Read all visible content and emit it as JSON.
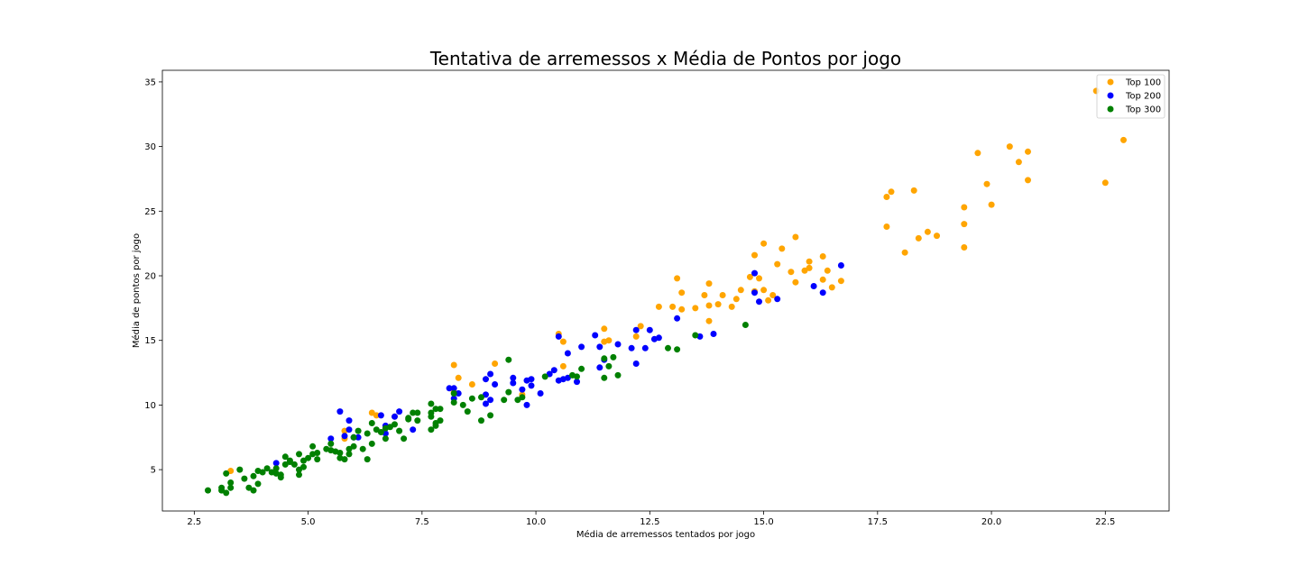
{
  "chart_data": {
    "type": "scatter",
    "title": "Tentativa de arremessos x Média de Pontos por jogo",
    "xlabel": "Média de arremessos tentados por jogo",
    "ylabel": "Média de pontos por jogo",
    "xlim": [
      1.8,
      23.9
    ],
    "ylim": [
      1.8,
      35.9
    ],
    "xticks": [
      2.5,
      5.0,
      7.5,
      10.0,
      12.5,
      15.0,
      17.5,
      20.0,
      22.5
    ],
    "xtick_labels": [
      "2.5",
      "5.0",
      "7.5",
      "10.0",
      "12.5",
      "15.0",
      "17.5",
      "20.0",
      "22.5"
    ],
    "yticks": [
      5,
      10,
      15,
      20,
      25,
      30,
      35
    ],
    "ytick_labels": [
      "5",
      "10",
      "15",
      "20",
      "25",
      "30",
      "35"
    ],
    "grid": false,
    "legend_position": "top-right",
    "series": [
      {
        "name": "Top 100",
        "color": "#FFA500",
        "points": [
          [
            22.9,
            30.5
          ],
          [
            22.5,
            27.2
          ],
          [
            22.3,
            34.3
          ],
          [
            20.8,
            29.6
          ],
          [
            20.8,
            27.4
          ],
          [
            20.6,
            28.8
          ],
          [
            20.4,
            30.0
          ],
          [
            20.0,
            25.5
          ],
          [
            19.9,
            27.1
          ],
          [
            19.7,
            29.5
          ],
          [
            19.4,
            25.3
          ],
          [
            19.4,
            24.0
          ],
          [
            19.4,
            22.2
          ],
          [
            18.8,
            23.1
          ],
          [
            18.6,
            23.4
          ],
          [
            18.4,
            22.9
          ],
          [
            18.3,
            26.6
          ],
          [
            18.1,
            21.8
          ],
          [
            17.8,
            26.5
          ],
          [
            17.7,
            26.1
          ],
          [
            17.7,
            23.8
          ],
          [
            16.7,
            19.6
          ],
          [
            16.5,
            19.1
          ],
          [
            16.4,
            20.4
          ],
          [
            16.3,
            21.5
          ],
          [
            16.3,
            19.7
          ],
          [
            16.0,
            21.1
          ],
          [
            16.0,
            20.6
          ],
          [
            15.9,
            20.4
          ],
          [
            15.7,
            23.0
          ],
          [
            15.7,
            19.5
          ],
          [
            15.6,
            20.3
          ],
          [
            15.4,
            22.1
          ],
          [
            15.3,
            20.9
          ],
          [
            15.2,
            18.5
          ],
          [
            15.1,
            18.1
          ],
          [
            15.0,
            22.5
          ],
          [
            15.0,
            18.9
          ],
          [
            14.9,
            19.8
          ],
          [
            14.8,
            21.6
          ],
          [
            14.8,
            18.8
          ],
          [
            14.7,
            19.9
          ],
          [
            14.5,
            18.9
          ],
          [
            14.4,
            18.2
          ],
          [
            14.3,
            17.6
          ],
          [
            14.1,
            18.5
          ],
          [
            14.0,
            17.8
          ],
          [
            13.8,
            19.4
          ],
          [
            13.8,
            17.7
          ],
          [
            13.8,
            16.5
          ],
          [
            13.7,
            18.5
          ],
          [
            13.5,
            17.5
          ],
          [
            13.2,
            18.7
          ],
          [
            13.2,
            17.4
          ],
          [
            13.1,
            19.8
          ],
          [
            13.0,
            17.6
          ],
          [
            12.7,
            17.6
          ],
          [
            12.3,
            16.1
          ],
          [
            12.2,
            15.3
          ],
          [
            11.6,
            15.0
          ],
          [
            11.5,
            15.9
          ],
          [
            11.5,
            14.9
          ],
          [
            10.6,
            14.9
          ],
          [
            10.6,
            13.0
          ],
          [
            10.5,
            15.5
          ],
          [
            9.7,
            10.8
          ],
          [
            9.1,
            13.2
          ],
          [
            8.6,
            11.6
          ],
          [
            8.3,
            12.1
          ],
          [
            8.2,
            13.1
          ],
          [
            8.2,
            11.0
          ],
          [
            6.9,
            9.1
          ],
          [
            6.5,
            9.2
          ],
          [
            6.4,
            9.4
          ],
          [
            5.8,
            7.4
          ],
          [
            5.8,
            8.0
          ],
          [
            3.3,
            4.9
          ]
        ]
      },
      {
        "name": "Top 200",
        "color": "#0000FF",
        "points": [
          [
            16.7,
            20.8
          ],
          [
            16.3,
            18.7
          ],
          [
            16.1,
            19.2
          ],
          [
            15.3,
            18.2
          ],
          [
            14.9,
            18.0
          ],
          [
            14.8,
            20.2
          ],
          [
            14.8,
            18.7
          ],
          [
            13.9,
            15.5
          ],
          [
            13.6,
            15.3
          ],
          [
            13.1,
            16.7
          ],
          [
            12.7,
            15.2
          ],
          [
            12.6,
            15.1
          ],
          [
            12.5,
            15.8
          ],
          [
            12.4,
            14.4
          ],
          [
            12.2,
            15.8
          ],
          [
            12.2,
            13.2
          ],
          [
            12.1,
            14.4
          ],
          [
            11.8,
            14.7
          ],
          [
            11.5,
            13.5
          ],
          [
            11.4,
            14.5
          ],
          [
            11.4,
            12.9
          ],
          [
            11.3,
            15.4
          ],
          [
            11.0,
            14.5
          ],
          [
            10.9,
            11.8
          ],
          [
            10.7,
            14.0
          ],
          [
            10.7,
            12.1
          ],
          [
            10.6,
            12.0
          ],
          [
            10.5,
            15.3
          ],
          [
            10.5,
            11.9
          ],
          [
            10.4,
            12.7
          ],
          [
            10.3,
            12.4
          ],
          [
            10.1,
            10.9
          ],
          [
            9.9,
            12.0
          ],
          [
            9.9,
            11.5
          ],
          [
            9.8,
            11.9
          ],
          [
            9.8,
            10.0
          ],
          [
            9.7,
            11.2
          ],
          [
            9.5,
            12.1
          ],
          [
            9.5,
            11.7
          ],
          [
            9.1,
            11.6
          ],
          [
            9.0,
            10.4
          ],
          [
            9.0,
            12.4
          ],
          [
            8.9,
            12.0
          ],
          [
            8.9,
            10.8
          ],
          [
            8.9,
            10.1
          ],
          [
            8.3,
            10.9
          ],
          [
            8.2,
            11.3
          ],
          [
            8.2,
            10.5
          ],
          [
            8.1,
            11.3
          ],
          [
            7.3,
            8.1
          ],
          [
            7.0,
            9.5
          ],
          [
            6.9,
            9.1
          ],
          [
            6.7,
            8.4
          ],
          [
            6.7,
            7.8
          ],
          [
            6.6,
            9.2
          ],
          [
            6.1,
            7.5
          ],
          [
            6.0,
            7.5
          ],
          [
            5.9,
            8.8
          ],
          [
            5.9,
            8.1
          ],
          [
            5.8,
            7.6
          ],
          [
            5.7,
            9.5
          ],
          [
            5.5,
            7.4
          ],
          [
            4.3,
            5.5
          ]
        ]
      },
      {
        "name": "Top 300",
        "color": "#008000",
        "points": [
          [
            14.6,
            16.2
          ],
          [
            13.5,
            15.4
          ],
          [
            13.1,
            14.3
          ],
          [
            12.9,
            14.4
          ],
          [
            11.8,
            12.3
          ],
          [
            11.7,
            13.7
          ],
          [
            11.6,
            13.0
          ],
          [
            11.5,
            13.6
          ],
          [
            11.5,
            12.1
          ],
          [
            11.0,
            12.8
          ],
          [
            10.9,
            12.2
          ],
          [
            10.8,
            12.3
          ],
          [
            10.2,
            12.2
          ],
          [
            9.7,
            10.6
          ],
          [
            9.6,
            10.4
          ],
          [
            9.4,
            13.5
          ],
          [
            9.4,
            11.0
          ],
          [
            9.3,
            10.4
          ],
          [
            9.0,
            9.2
          ],
          [
            8.8,
            10.6
          ],
          [
            8.8,
            8.8
          ],
          [
            8.6,
            10.5
          ],
          [
            8.5,
            9.5
          ],
          [
            8.4,
            10.0
          ],
          [
            8.2,
            10.9
          ],
          [
            8.2,
            10.2
          ],
          [
            7.9,
            8.8
          ],
          [
            7.9,
            9.7
          ],
          [
            7.8,
            9.7
          ],
          [
            7.8,
            8.6
          ],
          [
            7.8,
            8.4
          ],
          [
            7.7,
            10.1
          ],
          [
            7.7,
            9.4
          ],
          [
            7.7,
            9.1
          ],
          [
            7.7,
            8.1
          ],
          [
            7.4,
            9.4
          ],
          [
            7.4,
            8.8
          ],
          [
            7.3,
            9.4
          ],
          [
            7.2,
            8.9
          ],
          [
            7.2,
            9.0
          ],
          [
            7.1,
            7.4
          ],
          [
            7.0,
            8.0
          ],
          [
            6.9,
            8.5
          ],
          [
            6.8,
            8.3
          ],
          [
            6.7,
            8.2
          ],
          [
            6.7,
            7.4
          ],
          [
            6.6,
            7.9
          ],
          [
            6.5,
            8.1
          ],
          [
            6.4,
            8.6
          ],
          [
            6.4,
            7.0
          ],
          [
            6.3,
            7.8
          ],
          [
            6.3,
            5.8
          ],
          [
            6.2,
            6.6
          ],
          [
            6.1,
            8.0
          ],
          [
            6.0,
            6.8
          ],
          [
            6.0,
            7.5
          ],
          [
            5.9,
            6.2
          ],
          [
            5.9,
            6.6
          ],
          [
            5.8,
            5.8
          ],
          [
            5.7,
            5.9
          ],
          [
            5.7,
            6.3
          ],
          [
            5.6,
            6.4
          ],
          [
            5.5,
            6.5
          ],
          [
            5.5,
            7.0
          ],
          [
            5.4,
            6.6
          ],
          [
            5.2,
            5.8
          ],
          [
            5.2,
            6.3
          ],
          [
            5.1,
            6.2
          ],
          [
            5.1,
            6.8
          ],
          [
            5.0,
            5.9
          ],
          [
            4.9,
            5.2
          ],
          [
            4.9,
            5.7
          ],
          [
            4.8,
            6.2
          ],
          [
            4.8,
            5.0
          ],
          [
            4.8,
            4.6
          ],
          [
            4.7,
            5.4
          ],
          [
            4.6,
            5.7
          ],
          [
            4.6,
            5.6
          ],
          [
            4.5,
            6.0
          ],
          [
            4.5,
            5.4
          ],
          [
            4.4,
            4.4
          ],
          [
            4.4,
            4.6
          ],
          [
            4.3,
            5.1
          ],
          [
            4.3,
            4.7
          ],
          [
            4.2,
            4.8
          ],
          [
            4.1,
            5.1
          ],
          [
            4.0,
            4.8
          ],
          [
            3.9,
            3.9
          ],
          [
            3.9,
            4.9
          ],
          [
            3.8,
            3.4
          ],
          [
            3.8,
            4.5
          ],
          [
            3.7,
            3.6
          ],
          [
            3.6,
            4.3
          ],
          [
            3.5,
            5.0
          ],
          [
            3.3,
            4.0
          ],
          [
            3.3,
            3.6
          ],
          [
            3.2,
            3.2
          ],
          [
            3.2,
            4.7
          ],
          [
            3.1,
            3.6
          ],
          [
            3.1,
            3.4
          ],
          [
            2.8,
            3.4
          ]
        ]
      }
    ]
  }
}
